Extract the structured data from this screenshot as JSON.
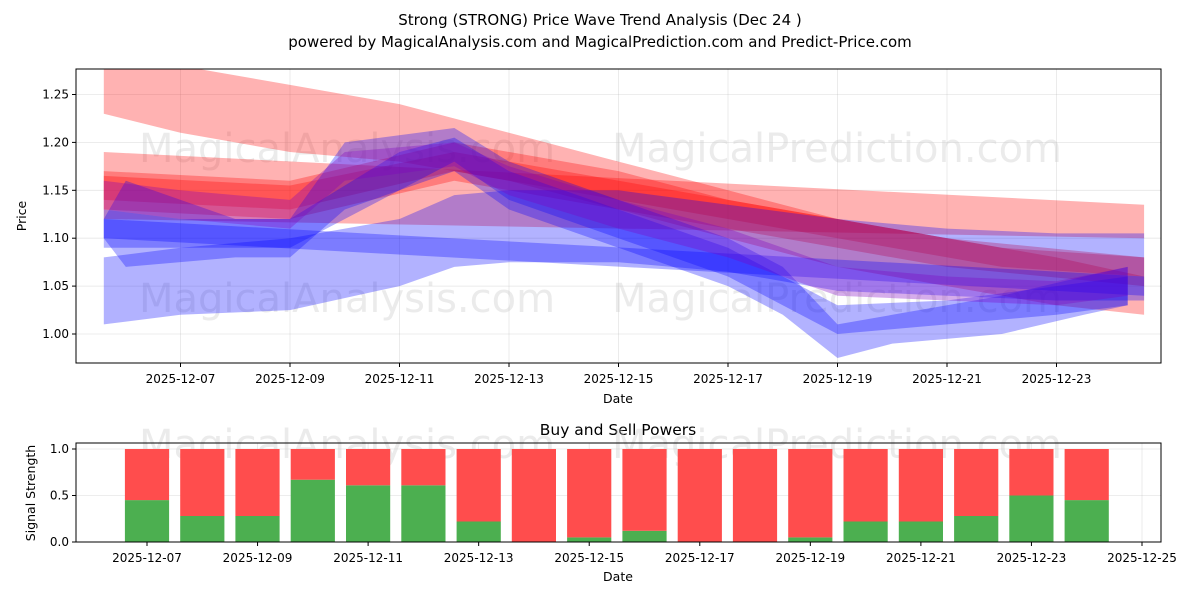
{
  "chart_data": [
    {
      "type": "area",
      "title_line1": "Strong (STRONG) Price Wave Trend Analysis (Dec 24 )",
      "title_line2": "powered by MagicalAnalysis.com and MagicalPrediction.com and Predict-Price.com",
      "xlabel": "Date",
      "ylabel": "Price",
      "ylim": [
        0.97,
        1.275
      ],
      "xlim": [
        "2025-12-05",
        "2025-12-25"
      ],
      "grid": true,
      "x_tick_labels": [
        "2025-12-07",
        "2025-12-09",
        "2025-12-11",
        "2025-12-13",
        "2025-12-15",
        "2025-12-17",
        "2025-12-19",
        "2025-12-21",
        "2025-12-23"
      ],
      "y_tick_labels": [
        "1.00",
        "1.05",
        "1.10",
        "1.15",
        "1.20",
        "1.25"
      ],
      "watermarks": [
        "MagicalAnalysis.com",
        "MagicalPrediction.com",
        "MagicalAnalysis.com",
        "MagicalPrediction.com"
      ],
      "series": [
        {
          "name": "red-upper-band",
          "color": "#ff0000",
          "x": [
            "2025-12-05.6",
            "2025-12-07",
            "2025-12-09",
            "2025-12-11",
            "2025-12-13",
            "2025-12-15",
            "2025-12-17",
            "2025-12-19",
            "2025-12-21",
            "2025-12-23",
            "2025-12-24.6"
          ],
          "lower": [
            1.23,
            1.21,
            1.19,
            1.18,
            1.16,
            1.13,
            1.1,
            1.07,
            1.05,
            1.03,
            1.02
          ],
          "upper": [
            1.28,
            1.28,
            1.26,
            1.24,
            1.21,
            1.18,
            1.15,
            1.12,
            1.1,
            1.08,
            1.06
          ]
        },
        {
          "name": "red-long-band",
          "color": "#ff0000",
          "x": [
            "2025-12-05.6",
            "2025-12-24.6"
          ],
          "lower": [
            1.12,
            1.1
          ],
          "upper": [
            1.19,
            1.135
          ]
        },
        {
          "name": "red-mid-band",
          "color": "#ff0000",
          "x": [
            "2025-12-05.6",
            "2025-12-09",
            "2025-12-12",
            "2025-12-15",
            "2025-12-17",
            "2025-12-19",
            "2025-12-21",
            "2025-12-24.6"
          ],
          "lower": [
            1.13,
            1.12,
            1.16,
            1.13,
            1.11,
            1.09,
            1.07,
            1.05
          ],
          "upper": [
            1.17,
            1.16,
            1.2,
            1.17,
            1.14,
            1.12,
            1.1,
            1.08
          ]
        },
        {
          "name": "red-thin-band",
          "color": "#ff0000",
          "x": [
            "2025-12-05.6",
            "2025-12-09",
            "2025-12-12",
            "2025-12-16",
            "2025-12-19",
            "2025-12-22",
            "2025-12-24.6"
          ],
          "lower": [
            1.14,
            1.13,
            1.17,
            1.13,
            1.1,
            1.07,
            1.06
          ],
          "upper": [
            1.165,
            1.155,
            1.19,
            1.15,
            1.12,
            1.09,
            1.08
          ]
        },
        {
          "name": "blue-lower-band",
          "color": "#0000ff",
          "x": [
            "2025-12-05.6",
            "2025-12-07",
            "2025-12-09",
            "2025-12-11",
            "2025-12-12",
            "2025-12-13",
            "2025-12-15",
            "2025-12-17",
            "2025-12-19",
            "2025-12-21",
            "2025-12-23",
            "2025-12-24.6"
          ],
          "lower": [
            1.01,
            1.02,
            1.025,
            1.05,
            1.07,
            1.075,
            1.075,
            1.065,
            1.045,
            1.04,
            1.035,
            1.035
          ],
          "upper": [
            1.08,
            1.09,
            1.1,
            1.12,
            1.145,
            1.15,
            1.15,
            1.135,
            1.12,
            1.11,
            1.105,
            1.105
          ]
        },
        {
          "name": "blue-long-band",
          "color": "#0000ff",
          "x": [
            "2025-12-05.6",
            "2025-12-24.6"
          ],
          "lower": [
            1.1,
            1.04
          ],
          "upper": [
            1.12,
            1.06
          ]
        },
        {
          "name": "blue-wave-band",
          "color": "#0000ff",
          "x": [
            "2025-12-05.6",
            "2025-12-06",
            "2025-12-08",
            "2025-12-09",
            "2025-12-10",
            "2025-12-12",
            "2025-12-13",
            "2025-12-15",
            "2025-12-17",
            "2025-12-18",
            "2025-12-19",
            "2025-12-20",
            "2025-12-22",
            "2025-12-23.5",
            "2025-12-24.3"
          ],
          "lower": [
            1.1,
            1.07,
            1.08,
            1.08,
            1.13,
            1.17,
            1.13,
            1.09,
            1.05,
            1.02,
            0.975,
            0.99,
            1.0,
            1.02,
            1.03
          ],
          "upper": [
            1.12,
            1.16,
            1.12,
            1.12,
            1.2,
            1.215,
            1.18,
            1.14,
            1.1,
            1.07,
            1.01,
            1.02,
            1.04,
            1.06,
            1.07
          ]
        },
        {
          "name": "blue-wave-band-2",
          "color": "#0000ff",
          "x": [
            "2025-12-05.6",
            "2025-12-07",
            "2025-12-09",
            "2025-12-11",
            "2025-12-12",
            "2025-12-13",
            "2025-12-15",
            "2025-12-17",
            "2025-12-19",
            "2025-12-21",
            "2025-12-23",
            "2025-12-24.3"
          ],
          "lower": [
            1.09,
            1.09,
            1.09,
            1.15,
            1.18,
            1.14,
            1.1,
            1.06,
            1.0,
            1.01,
            1.02,
            1.03
          ],
          "upper": [
            1.13,
            1.12,
            1.12,
            1.19,
            1.205,
            1.17,
            1.13,
            1.09,
            1.03,
            1.035,
            1.05,
            1.06
          ]
        },
        {
          "name": "purple-wave-band",
          "color": "#8000c0",
          "x": [
            "2025-12-05.6",
            "2025-12-07",
            "2025-12-09",
            "2025-12-10",
            "2025-12-12",
            "2025-12-13",
            "2025-12-15",
            "2025-12-17",
            "2025-12-19",
            "2025-12-21",
            "2025-12-23",
            "2025-12-24.3"
          ],
          "lower": [
            1.13,
            1.12,
            1.11,
            1.16,
            1.175,
            1.145,
            1.11,
            1.08,
            1.04,
            1.035,
            1.03,
            1.04
          ],
          "upper": [
            1.16,
            1.15,
            1.14,
            1.19,
            1.2,
            1.175,
            1.14,
            1.11,
            1.07,
            1.06,
            1.055,
            1.07
          ]
        }
      ]
    },
    {
      "type": "bar",
      "title": "Buy and Sell Powers",
      "xlabel": "Date",
      "ylabel": "Signal Strength",
      "ylim": [
        0,
        1.05
      ],
      "y_tick_labels": [
        "0.0",
        "0.5",
        "1.0"
      ],
      "x_tick_labels": [
        "2025-12-07",
        "2025-12-09",
        "2025-12-11",
        "2025-12-13",
        "2025-12-15",
        "2025-12-17",
        "2025-12-19",
        "2025-12-21",
        "2025-12-23",
        "2025-12-25"
      ],
      "categories": [
        "2025-12-07",
        "2025-12-08",
        "2025-12-09",
        "2025-12-10",
        "2025-12-11",
        "2025-12-12",
        "2025-12-13",
        "2025-12-14",
        "2025-12-15",
        "2025-12-16",
        "2025-12-17",
        "2025-12-18",
        "2025-12-19",
        "2025-12-20",
        "2025-12-21",
        "2025-12-22",
        "2025-12-23",
        "2025-12-24"
      ],
      "series": [
        {
          "name": "Buy",
          "color": "#4caf50",
          "values": [
            0.45,
            0.28,
            0.28,
            0.67,
            0.61,
            0.61,
            0.22,
            0.0,
            0.05,
            0.12,
            0.0,
            0.0,
            0.05,
            0.22,
            0.22,
            0.28,
            0.5,
            0.45
          ]
        },
        {
          "name": "Sell",
          "color": "#ff4d4d",
          "values": [
            0.55,
            0.72,
            0.72,
            0.33,
            0.39,
            0.39,
            0.78,
            1.0,
            0.95,
            0.88,
            1.0,
            1.0,
            0.95,
            0.78,
            0.78,
            0.72,
            0.5,
            0.55
          ]
        }
      ],
      "watermarks": [
        "MagicalAnalysis.com",
        "MagicalPrediction.com"
      ]
    }
  ]
}
